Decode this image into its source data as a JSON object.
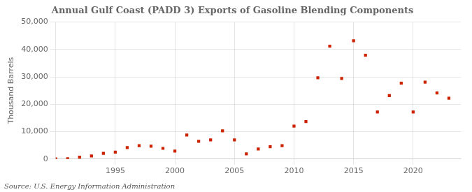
{
  "chart_data": {
    "type": "scatter",
    "title": "Annual Gulf Coast (PADD 3) Exports of Gasoline Blending Components",
    "y_label": "Thousand Barrels",
    "annotations": [
      "Source: U.S. Energy Information Administration"
    ],
    "x": [
      1990,
      1991,
      1992,
      1993,
      1994,
      1995,
      1996,
      1997,
      1998,
      1999,
      2000,
      2001,
      2002,
      2003,
      2004,
      2005,
      2006,
      2007,
      2008,
      2009,
      2010,
      2011,
      2012,
      2013,
      2014,
      2015,
      2016,
      2017,
      2018,
      2019,
      2020,
      2021,
      2022,
      2023
    ],
    "values": [
      50,
      100,
      700,
      1100,
      2100,
      2500,
      4200,
      4900,
      4700,
      3900,
      2900,
      8800,
      6500,
      7000,
      10300,
      7000,
      1900,
      3700,
      4500,
      4900,
      12000,
      13700,
      29700,
      41200,
      29400,
      43200,
      37900,
      17200,
      23200,
      27700,
      17200,
      28100,
      24100,
      22200
    ],
    "color": "#cc2200",
    "marker": "square",
    "xlim": [
      1990,
      2024
    ],
    "xticks": [
      1995,
      2000,
      2005,
      2010,
      2015,
      2020
    ],
    "ylim": [
      0,
      50000
    ],
    "yticks": [
      0,
      {
        "value": 10000,
        "label": "10,000"
      },
      {
        "value": 20000,
        "label": "20,000"
      },
      {
        "value": 30000,
        "label": "30,000"
      },
      {
        "value": 40000,
        "label": "40,000"
      },
      {
        "value": 50000,
        "label": "50,000"
      }
    ],
    "grid": true
  }
}
